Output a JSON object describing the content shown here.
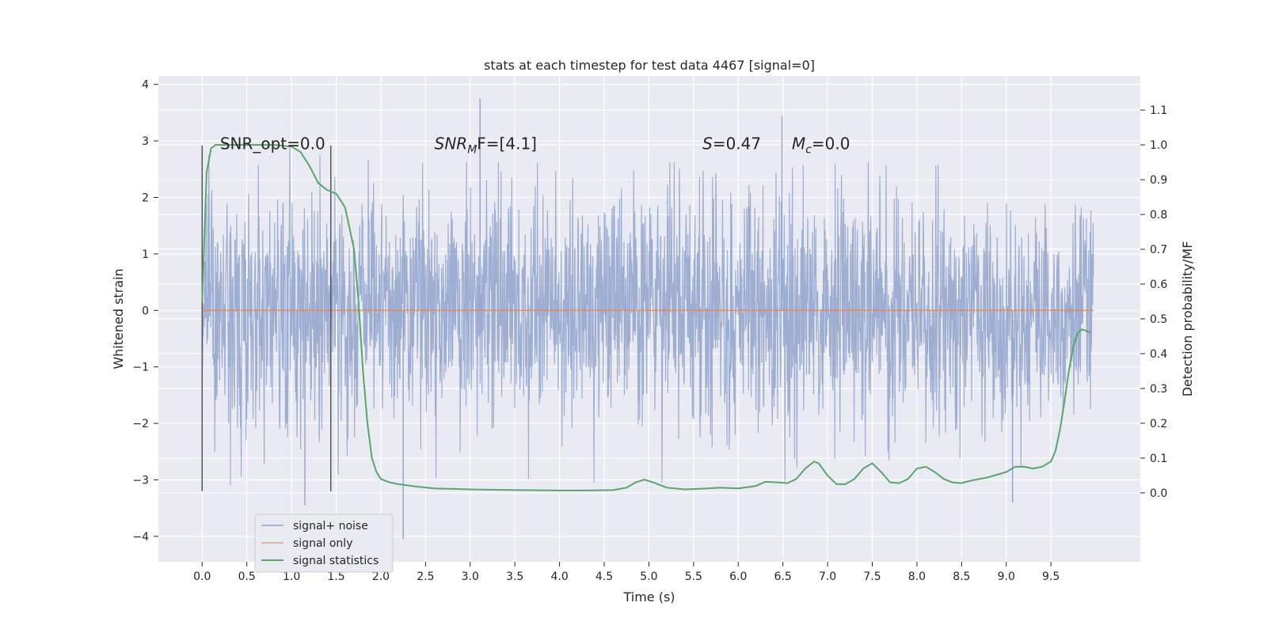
{
  "chart_data": {
    "type": "line",
    "title": "stats at each timestep for test data 4467 [signal=0]",
    "xlabel": "Time (s)",
    "ylabel": "Whitened strain",
    "y2label": "Detection probability/MF",
    "xlim": [
      -0.49,
      10.5
    ],
    "ylim": [
      -4.45,
      4.15
    ],
    "y2lim": [
      -0.198,
      1.198
    ],
    "xticks": [
      "0.0",
      "0.5",
      "1.0",
      "1.5",
      "2.0",
      "2.5",
      "3.0",
      "3.5",
      "4.0",
      "4.5",
      "5.0",
      "5.5",
      "6.0",
      "6.5",
      "7.0",
      "7.5",
      "8.0",
      "8.5",
      "9.0",
      "9.5"
    ],
    "yticks": [
      "−4",
      "−3",
      "−2",
      "−1",
      "0",
      "1",
      "2",
      "3",
      "4"
    ],
    "y2ticks": [
      "0.0",
      "0.1",
      "0.2",
      "0.3",
      "0.4",
      "0.5",
      "0.6",
      "0.7",
      "0.8",
      "0.9",
      "1.0",
      "1.1"
    ],
    "grid": true,
    "legend_position": "lower-left",
    "annotations": [
      {
        "text_main": "SNR_opt=0.0",
        "x": 0.2,
        "y": 2.95
      },
      {
        "text_sym": "SNR",
        "text_sub": "M",
        "text_after": "F=[4.1]",
        "x": 2.6,
        "y": 2.95
      },
      {
        "text_sym": "S",
        "text_after": "=0.47",
        "x": 5.6,
        "y": 2.95
      },
      {
        "text_sym": "M",
        "text_sub": "c",
        "text_after": "=0.0",
        "x": 6.6,
        "y": 2.95
      }
    ],
    "vlines": [
      {
        "x": 0.0,
        "ymin": -3.2,
        "ymax": 2.92
      },
      {
        "x": 1.44,
        "ymin": -3.2,
        "ymax": 2.92
      }
    ],
    "series": [
      {
        "name": "signal+ noise",
        "color": "#8fa3cc",
        "t_range": [
          0.0,
          9.98
        ],
        "envelope": {
          "description": "dense noise",
          "x": [
            0.0,
            2.0,
            4.0,
            6.0,
            8.0,
            9.98
          ],
          "upper": [
            3.0,
            2.5,
            2.5,
            2.5,
            2.5,
            2.2
          ],
          "lower": [
            -3.0,
            -2.8,
            -2.9,
            -2.9,
            -2.8,
            -2.5
          ]
        },
        "spikes": [
          {
            "x": 3.11,
            "y": 3.75
          },
          {
            "x": 6.49,
            "y": 3.45
          },
          {
            "x": 2.25,
            "y": -4.05
          },
          {
            "x": 1.15,
            "y": -3.45
          },
          {
            "x": 9.07,
            "y": -3.4
          }
        ]
      },
      {
        "name": "signal only",
        "color": "#dd8452",
        "x": [
          0.0,
          9.98
        ],
        "y": [
          0.0,
          0.0
        ]
      },
      {
        "name": "signal statistics",
        "color": "#55a868",
        "axis": "y2",
        "x": [
          0.0,
          0.05,
          0.1,
          0.15,
          0.25,
          0.4,
          0.6,
          0.8,
          1.0,
          1.1,
          1.2,
          1.3,
          1.4,
          1.5,
          1.6,
          1.7,
          1.75,
          1.8,
          1.85,
          1.9,
          1.95,
          2.0,
          2.05,
          2.1,
          2.2,
          2.4,
          2.6,
          3.0,
          3.5,
          4.0,
          4.3,
          4.6,
          4.75,
          4.85,
          4.95,
          5.05,
          5.2,
          5.4,
          5.6,
          5.8,
          6.0,
          6.2,
          6.3,
          6.45,
          6.55,
          6.65,
          6.75,
          6.85,
          6.9,
          7.0,
          7.1,
          7.2,
          7.3,
          7.4,
          7.5,
          7.6,
          7.7,
          7.8,
          7.9,
          8.0,
          8.1,
          8.2,
          8.3,
          8.4,
          8.5,
          8.6,
          8.8,
          9.0,
          9.1,
          9.2,
          9.3,
          9.4,
          9.5,
          9.55,
          9.6,
          9.65,
          9.7,
          9.75,
          9.8,
          9.85,
          9.9,
          9.95
        ],
        "y": [
          0.55,
          0.92,
          0.99,
          1.0,
          1.0,
          1.0,
          1.0,
          1.0,
          0.995,
          0.98,
          0.94,
          0.89,
          0.87,
          0.86,
          0.82,
          0.7,
          0.55,
          0.35,
          0.2,
          0.1,
          0.06,
          0.04,
          0.035,
          0.03,
          0.025,
          0.018,
          0.013,
          0.01,
          0.008,
          0.007,
          0.007,
          0.008,
          0.015,
          0.03,
          0.038,
          0.03,
          0.015,
          0.01,
          0.012,
          0.015,
          0.013,
          0.02,
          0.032,
          0.03,
          0.028,
          0.04,
          0.07,
          0.09,
          0.085,
          0.05,
          0.025,
          0.025,
          0.04,
          0.07,
          0.085,
          0.06,
          0.03,
          0.028,
          0.04,
          0.07,
          0.075,
          0.06,
          0.04,
          0.03,
          0.028,
          0.035,
          0.045,
          0.06,
          0.075,
          0.075,
          0.07,
          0.075,
          0.09,
          0.12,
          0.18,
          0.26,
          0.35,
          0.42,
          0.46,
          0.47,
          0.465,
          0.46
        ]
      }
    ]
  }
}
